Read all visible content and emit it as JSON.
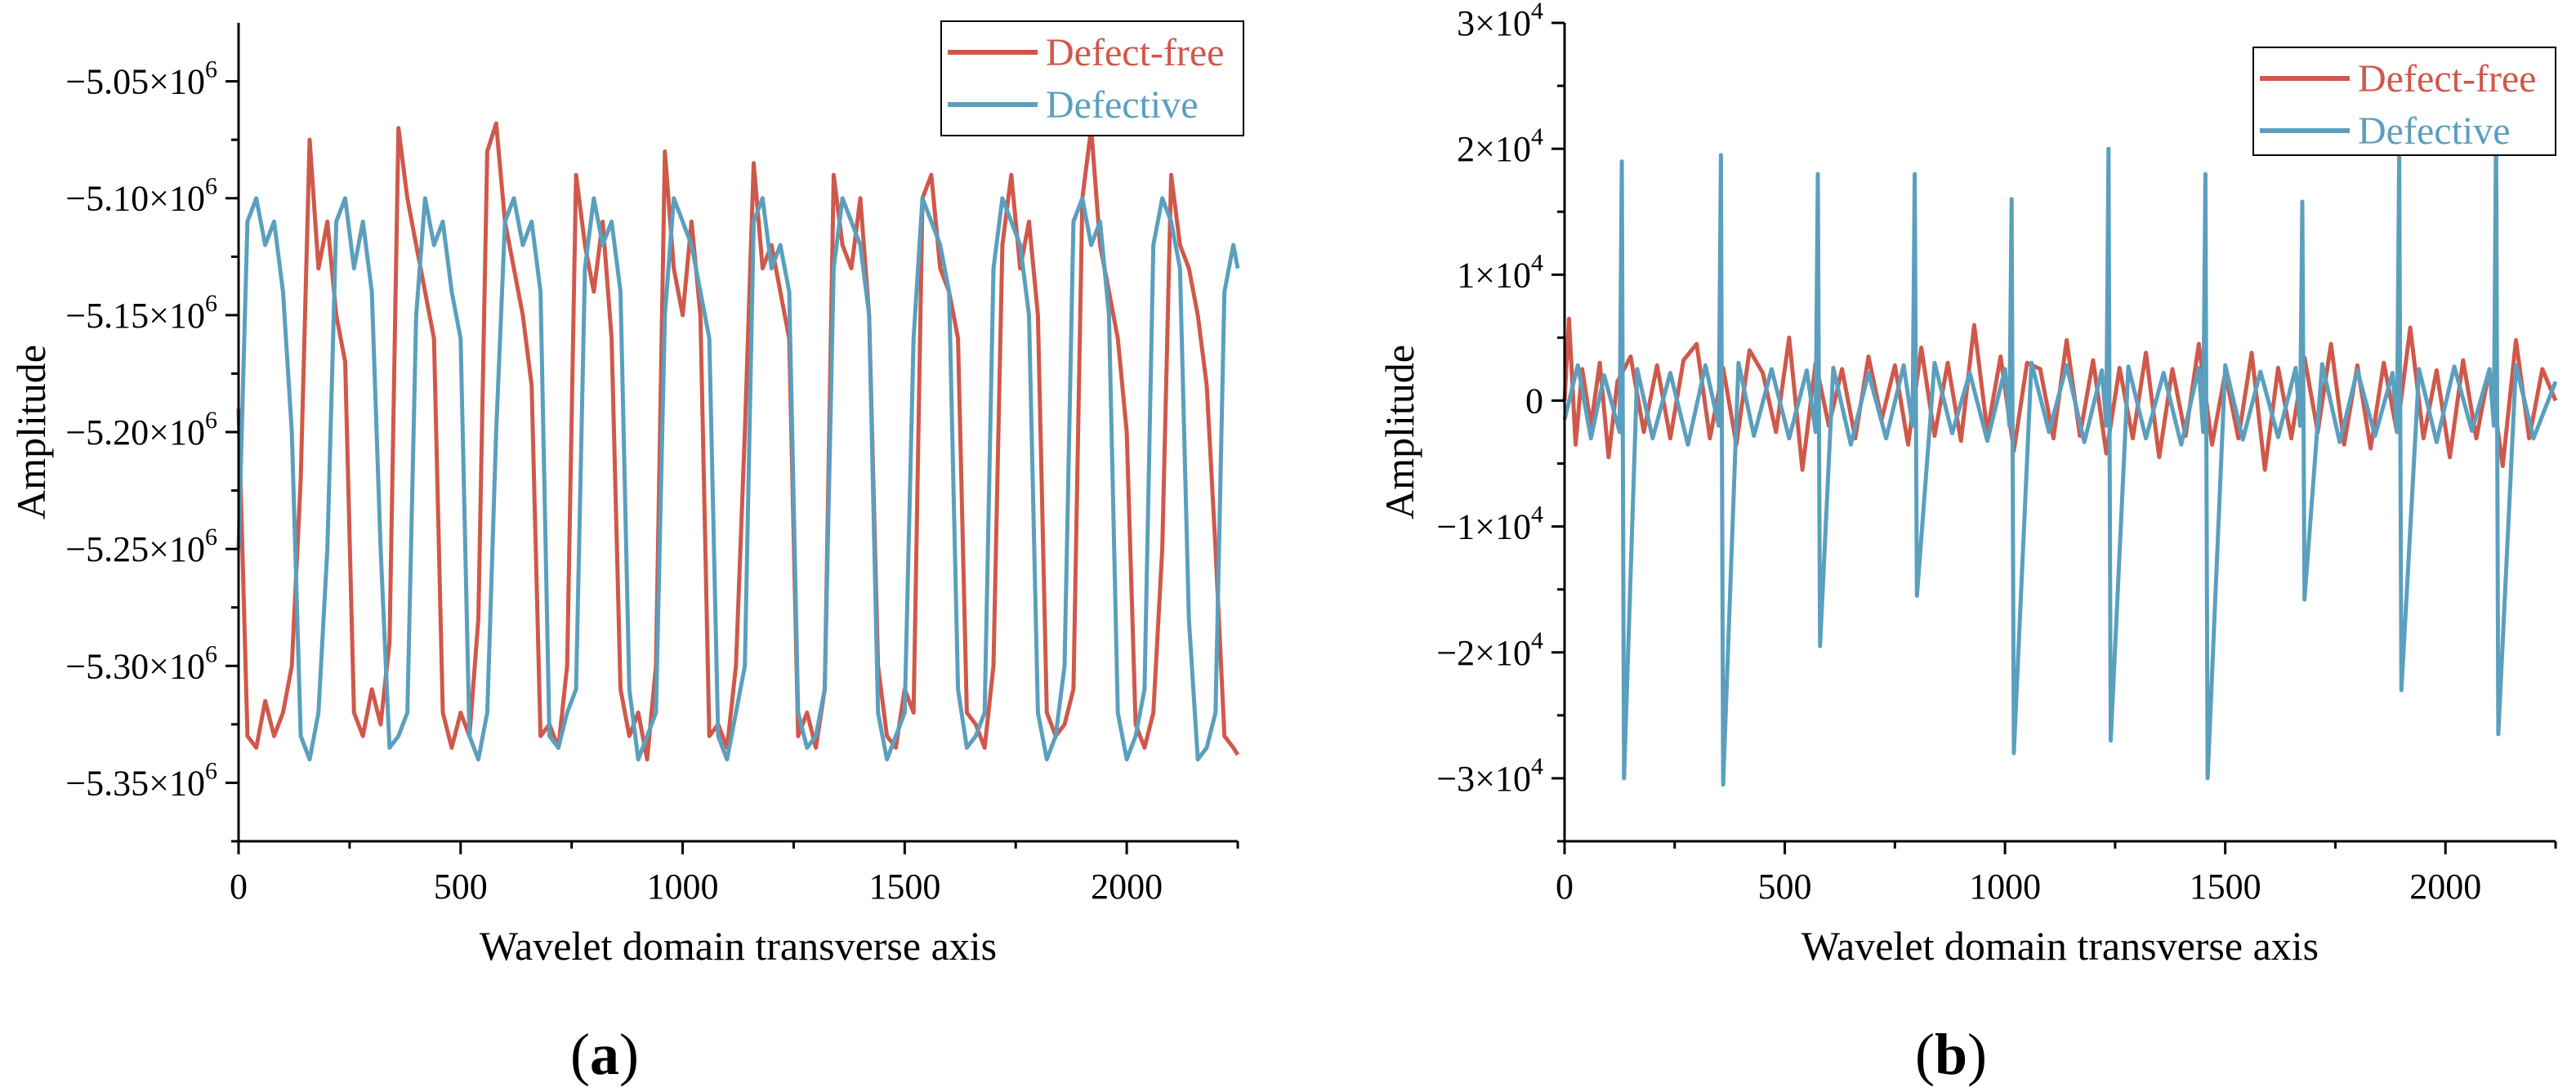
{
  "figure": {
    "panels": [
      {
        "label_open": "(",
        "label_letter": "a",
        "label_close": ")"
      },
      {
        "label_open": "(",
        "label_letter": "b",
        "label_close": ")"
      }
    ]
  },
  "chart_data": [
    {
      "type": "line",
      "panel": "a",
      "title": "",
      "xlabel": "Wavelet domain transverse axis",
      "ylabel": "Amplitude",
      "xlim": [
        0,
        2250
      ],
      "ylim": [
        -5375000,
        -5025000
      ],
      "xticks": [
        0,
        500,
        1000,
        1500,
        2000
      ],
      "xtick_labels": [
        "0",
        "500",
        "1000",
        "1500",
        "2000"
      ],
      "yticks": [
        -5050000,
        -5100000,
        -5150000,
        -5200000,
        -5250000,
        -5300000,
        -5350000
      ],
      "ytick_labels": [
        {
          "mantissa": "−5.05×10",
          "exp": "6"
        },
        {
          "mantissa": "−5.10×10",
          "exp": "6"
        },
        {
          "mantissa": "−5.15×10",
          "exp": "6"
        },
        {
          "mantissa": "−5.20×10",
          "exp": "6"
        },
        {
          "mantissa": "−5.25×10",
          "exp": "6"
        },
        {
          "mantissa": "−5.30×10",
          "exp": "6"
        },
        {
          "mantissa": "−5.35×10",
          "exp": "6"
        }
      ],
      "grid": false,
      "legend_position": "top-right",
      "series": [
        {
          "name": "Defect-free",
          "color": "#d0584a",
          "x": [
            0,
            20,
            40,
            60,
            80,
            100,
            120,
            140,
            160,
            180,
            200,
            220,
            240,
            260,
            280,
            300,
            320,
            340,
            360,
            380,
            400,
            420,
            440,
            460,
            480,
            500,
            520,
            540,
            560,
            580,
            600,
            620,
            640,
            660,
            680,
            700,
            720,
            740,
            760,
            780,
            800,
            820,
            840,
            860,
            880,
            900,
            920,
            940,
            960,
            980,
            1000,
            1020,
            1040,
            1060,
            1080,
            1100,
            1120,
            1140,
            1160,
            1180,
            1200,
            1220,
            1240,
            1260,
            1280,
            1300,
            1320,
            1340,
            1360,
            1380,
            1400,
            1420,
            1440,
            1460,
            1480,
            1500,
            1520,
            1540,
            1560,
            1580,
            1600,
            1620,
            1640,
            1660,
            1680,
            1700,
            1720,
            1740,
            1760,
            1780,
            1800,
            1820,
            1840,
            1860,
            1880,
            1900,
            1920,
            1940,
            1960,
            1980,
            2000,
            2020,
            2040,
            2060,
            2080,
            2100,
            2120,
            2140,
            2160,
            2180,
            2200,
            2220,
            2240,
            2250
          ],
          "y": [
            -5190000,
            -5330000,
            -5335000,
            -5315000,
            -5330000,
            -5320000,
            -5300000,
            -5220000,
            -5075000,
            -5130000,
            -5110000,
            -5150000,
            -5170000,
            -5320000,
            -5330000,
            -5310000,
            -5325000,
            -5290000,
            -5070000,
            -5100000,
            -5120000,
            -5140000,
            -5160000,
            -5320000,
            -5335000,
            -5320000,
            -5330000,
            -5280000,
            -5080000,
            -5068000,
            -5110000,
            -5130000,
            -5150000,
            -5180000,
            -5330000,
            -5325000,
            -5335000,
            -5300000,
            -5090000,
            -5120000,
            -5140000,
            -5110000,
            -5160000,
            -5310000,
            -5330000,
            -5320000,
            -5340000,
            -5300000,
            -5080000,
            -5130000,
            -5150000,
            -5110000,
            -5150000,
            -5330000,
            -5325000,
            -5335000,
            -5300000,
            -5200000,
            -5085000,
            -5130000,
            -5120000,
            -5140000,
            -5160000,
            -5330000,
            -5320000,
            -5335000,
            -5310000,
            -5090000,
            -5120000,
            -5130000,
            -5100000,
            -5150000,
            -5300000,
            -5330000,
            -5335000,
            -5310000,
            -5320000,
            -5100000,
            -5090000,
            -5130000,
            -5140000,
            -5160000,
            -5320000,
            -5325000,
            -5335000,
            -5300000,
            -5120000,
            -5090000,
            -5130000,
            -5110000,
            -5150000,
            -5320000,
            -5330000,
            -5325000,
            -5310000,
            -5100000,
            -5070000,
            -5120000,
            -5140000,
            -5160000,
            -5200000,
            -5325000,
            -5335000,
            -5320000,
            -5250000,
            -5090000,
            -5120000,
            -5130000,
            -5150000,
            -5180000,
            -5250000,
            -5330000,
            -5335000,
            -5338000
          ]
        },
        {
          "name": "Defective",
          "color": "#5b9fbe",
          "x": [
            0,
            20,
            40,
            60,
            80,
            100,
            120,
            140,
            160,
            180,
            200,
            220,
            240,
            260,
            280,
            300,
            320,
            340,
            360,
            380,
            400,
            420,
            440,
            460,
            480,
            500,
            520,
            540,
            560,
            580,
            600,
            620,
            640,
            660,
            680,
            700,
            720,
            740,
            760,
            780,
            800,
            820,
            840,
            860,
            880,
            900,
            920,
            940,
            960,
            980,
            1000,
            1020,
            1040,
            1060,
            1080,
            1100,
            1120,
            1140,
            1160,
            1180,
            1200,
            1220,
            1240,
            1260,
            1280,
            1300,
            1320,
            1340,
            1360,
            1380,
            1400,
            1420,
            1440,
            1460,
            1480,
            1500,
            1520,
            1540,
            1560,
            1580,
            1600,
            1620,
            1640,
            1660,
            1680,
            1700,
            1720,
            1740,
            1760,
            1780,
            1800,
            1820,
            1840,
            1860,
            1880,
            1900,
            1920,
            1940,
            1960,
            1980,
            2000,
            2020,
            2040,
            2060,
            2080,
            2100,
            2120,
            2140,
            2160,
            2180,
            2200,
            2220,
            2240,
            2250
          ],
          "y": [
            -5250000,
            -5110000,
            -5100000,
            -5120000,
            -5110000,
            -5140000,
            -5200000,
            -5330000,
            -5340000,
            -5320000,
            -5250000,
            -5110000,
            -5100000,
            -5130000,
            -5110000,
            -5140000,
            -5250000,
            -5335000,
            -5330000,
            -5320000,
            -5150000,
            -5100000,
            -5120000,
            -5110000,
            -5140000,
            -5160000,
            -5330000,
            -5340000,
            -5320000,
            -5200000,
            -5110000,
            -5100000,
            -5120000,
            -5110000,
            -5140000,
            -5330000,
            -5335000,
            -5320000,
            -5310000,
            -5130000,
            -5100000,
            -5120000,
            -5110000,
            -5140000,
            -5310000,
            -5340000,
            -5330000,
            -5320000,
            -5150000,
            -5100000,
            -5110000,
            -5120000,
            -5140000,
            -5160000,
            -5330000,
            -5340000,
            -5320000,
            -5300000,
            -5110000,
            -5100000,
            -5130000,
            -5120000,
            -5140000,
            -5320000,
            -5335000,
            -5330000,
            -5310000,
            -5130000,
            -5100000,
            -5110000,
            -5120000,
            -5150000,
            -5320000,
            -5340000,
            -5330000,
            -5320000,
            -5160000,
            -5100000,
            -5110000,
            -5120000,
            -5140000,
            -5310000,
            -5335000,
            -5330000,
            -5320000,
            -5130000,
            -5100000,
            -5110000,
            -5120000,
            -5150000,
            -5320000,
            -5340000,
            -5330000,
            -5300000,
            -5110000,
            -5100000,
            -5120000,
            -5110000,
            -5150000,
            -5320000,
            -5340000,
            -5330000,
            -5310000,
            -5120000,
            -5100000,
            -5110000,
            -5130000,
            -5280000,
            -5340000,
            -5335000,
            -5320000,
            -5140000,
            -5120000,
            -5130000
          ]
        }
      ]
    },
    {
      "type": "line",
      "panel": "b",
      "title": "",
      "xlabel": "Wavelet domain transverse axis",
      "ylabel": "Amplitude",
      "xlim": [
        0,
        2250
      ],
      "ylim": [
        -35000,
        30000
      ],
      "xticks": [
        0,
        500,
        1000,
        1500,
        2000
      ],
      "xtick_labels": [
        "0",
        "500",
        "1000",
        "1500",
        "2000"
      ],
      "yticks": [
        30000,
        20000,
        10000,
        0,
        -10000,
        -20000,
        -30000
      ],
      "ytick_labels": [
        {
          "mantissa": "3×10",
          "exp": "4"
        },
        {
          "mantissa": "2×10",
          "exp": "4"
        },
        {
          "mantissa": "1×10",
          "exp": "4"
        },
        {
          "mantissa": "0",
          "exp": ""
        },
        {
          "mantissa": "−1×10",
          "exp": "4"
        },
        {
          "mantissa": "−2×10",
          "exp": "4"
        },
        {
          "mantissa": "−3×10",
          "exp": "4"
        }
      ],
      "grid": false,
      "legend_position": "top-right",
      "series": [
        {
          "name": "Defect-free",
          "color": "#d0584a",
          "x": [
            0,
            10,
            25,
            40,
            60,
            80,
            100,
            120,
            150,
            180,
            210,
            240,
            270,
            300,
            330,
            360,
            390,
            420,
            450,
            480,
            510,
            540,
            570,
            600,
            630,
            660,
            690,
            720,
            750,
            780,
            810,
            840,
            870,
            900,
            930,
            960,
            990,
            1020,
            1050,
            1080,
            1110,
            1140,
            1170,
            1200,
            1230,
            1260,
            1290,
            1320,
            1350,
            1380,
            1410,
            1440,
            1470,
            1500,
            1530,
            1560,
            1590,
            1620,
            1650,
            1680,
            1710,
            1740,
            1770,
            1800,
            1830,
            1860,
            1890,
            1920,
            1950,
            1980,
            2010,
            2040,
            2070,
            2100,
            2130,
            2160,
            2190,
            2220,
            2250
          ],
          "y": [
            0,
            6500,
            -3500,
            2500,
            -2000,
            3000,
            -4500,
            1500,
            3500,
            -2500,
            2800,
            -3000,
            3200,
            4500,
            -3000,
            2600,
            -3500,
            4000,
            2200,
            -2500,
            5000,
            -5500,
            3000,
            -2000,
            2500,
            -3000,
            3500,
            -1500,
            2800,
            -3500,
            4200,
            -2800,
            3000,
            -3200,
            6000,
            -2500,
            3500,
            -4000,
            3000,
            2500,
            -3000,
            4800,
            -2800,
            3200,
            -4200,
            2600,
            -3000,
            3800,
            -4500,
            2500,
            -2800,
            4500,
            -3500,
            2200,
            -3000,
            3800,
            -5500,
            2600,
            -3000,
            3400,
            -2500,
            4500,
            -3500,
            2800,
            -3800,
            3000,
            -2500,
            5800,
            -3000,
            2400,
            -4500,
            3200,
            -3000,
            2500,
            -5200,
            4800,
            -3000,
            2500,
            0
          ]
        },
        {
          "name": "Defective",
          "color": "#5b9fbe",
          "x": [
            0,
            30,
            60,
            90,
            125,
            130,
            135,
            165,
            200,
            240,
            280,
            320,
            350,
            355,
            360,
            395,
            430,
            470,
            510,
            550,
            570,
            575,
            580,
            610,
            650,
            690,
            730,
            770,
            790,
            795,
            800,
            840,
            880,
            920,
            960,
            1000,
            1010,
            1015,
            1020,
            1060,
            1100,
            1140,
            1180,
            1220,
            1230,
            1235,
            1240,
            1280,
            1320,
            1360,
            1400,
            1440,
            1450,
            1455,
            1460,
            1500,
            1540,
            1580,
            1620,
            1660,
            1670,
            1675,
            1680,
            1720,
            1760,
            1800,
            1840,
            1880,
            1890,
            1895,
            1900,
            1940,
            1980,
            2020,
            2060,
            2100,
            2110,
            2115,
            2120,
            2160,
            2200,
            2250
          ],
          "y": [
            -1500,
            2800,
            -3000,
            2000,
            -2500,
            19000,
            -30000,
            2500,
            -3000,
            2200,
            -3500,
            2800,
            -2000,
            19500,
            -30500,
            3000,
            -2800,
            2500,
            -3000,
            2400,
            -2500,
            18000,
            -19500,
            2600,
            -3500,
            2200,
            -3000,
            2800,
            -2000,
            18000,
            -15500,
            3000,
            -2600,
            2200,
            -3200,
            2500,
            -2000,
            16000,
            -28000,
            3000,
            -2500,
            2800,
            -3300,
            2400,
            -2000,
            20000,
            -27000,
            2700,
            -3000,
            2200,
            -3500,
            2600,
            -2500,
            18000,
            -30000,
            2800,
            -3100,
            2300,
            -2900,
            2600,
            -2000,
            15800,
            -15800,
            2900,
            -3300,
            2400,
            -2800,
            2200,
            -2500,
            19500,
            -23000,
            2500,
            -3300,
            2700,
            -2400,
            2500,
            -2000,
            22000,
            -26500,
            2800,
            -3000,
            1500
          ]
        }
      ]
    }
  ]
}
